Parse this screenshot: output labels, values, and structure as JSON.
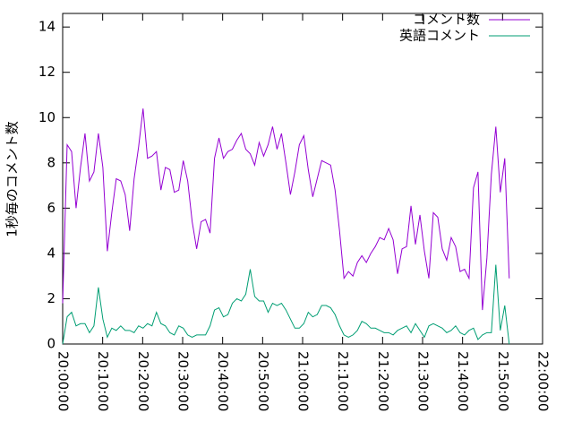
{
  "chart_data": {
    "type": "line",
    "y_label": "1秒毎のコメント数",
    "x": [
      "20:00:00",
      "20:01:07",
      "20:02:14",
      "20:03:21",
      "20:04:28",
      "20:05:35",
      "20:06:42",
      "20:07:49",
      "20:08:56",
      "20:10:03",
      "20:11:10",
      "20:12:17",
      "20:13:24",
      "20:14:31",
      "20:15:38",
      "20:16:45",
      "20:17:52",
      "20:18:59",
      "20:20:06",
      "20:21:13",
      "20:22:20",
      "20:23:27",
      "20:24:34",
      "20:25:41",
      "20:26:48",
      "20:27:55",
      "20:29:02",
      "20:30:09",
      "20:31:16",
      "20:32:23",
      "20:33:30",
      "20:34:37",
      "20:35:44",
      "20:36:51",
      "20:37:58",
      "20:39:05",
      "20:40:12",
      "20:41:19",
      "20:42:26",
      "20:43:33",
      "20:44:40",
      "20:45:47",
      "20:46:54",
      "20:48:01",
      "20:49:08",
      "20:50:15",
      "20:51:22",
      "20:52:29",
      "20:53:36",
      "20:54:43",
      "20:55:50",
      "20:56:57",
      "20:58:04",
      "20:59:11",
      "21:00:18",
      "21:01:25",
      "21:02:32",
      "21:03:39",
      "21:04:46",
      "21:05:53",
      "21:07:00",
      "21:08:07",
      "21:09:14",
      "21:10:21",
      "21:11:28",
      "21:12:35",
      "21:13:42",
      "21:14:49",
      "21:15:56",
      "21:17:03",
      "21:18:10",
      "21:19:17",
      "21:20:24",
      "21:21:31",
      "21:22:38",
      "21:23:45",
      "21:24:52",
      "21:25:59",
      "21:27:06",
      "21:28:13",
      "21:29:20",
      "21:30:27",
      "21:31:34",
      "21:32:41",
      "21:33:48",
      "21:34:55",
      "21:36:02",
      "21:37:09",
      "21:38:16",
      "21:39:23",
      "21:40:30",
      "21:41:37",
      "21:42:44",
      "21:43:51",
      "21:44:58",
      "21:46:05",
      "21:47:12",
      "21:48:19",
      "21:49:26",
      "21:50:33",
      "21:51:40"
    ],
    "series": [
      {
        "name": "コメント数",
        "color": "#9400d3",
        "values": [
          1.8,
          8.8,
          8.5,
          6.0,
          7.8,
          9.3,
          7.2,
          7.6,
          9.3,
          7.8,
          4.1,
          5.8,
          7.3,
          7.2,
          6.6,
          5.0,
          7.3,
          8.7,
          10.4,
          8.2,
          8.3,
          8.5,
          6.8,
          7.8,
          7.7,
          6.7,
          6.8,
          8.1,
          7.2,
          5.4,
          4.2,
          5.4,
          5.5,
          4.9,
          8.2,
          9.1,
          8.2,
          8.5,
          8.6,
          9.0,
          9.3,
          8.6,
          8.4,
          7.9,
          8.9,
          8.3,
          8.8,
          9.6,
          8.6,
          9.3,
          8.0,
          6.6,
          7.6,
          8.8,
          9.2,
          7.7,
          6.5,
          7.3,
          8.1,
          8.0,
          7.9,
          6.8,
          5.0,
          2.9,
          3.2,
          3.0,
          3.6,
          3.9,
          3.6,
          4.0,
          4.3,
          4.7,
          4.6,
          5.1,
          4.6,
          3.1,
          4.2,
          4.3,
          6.1,
          4.4,
          5.7,
          4.1,
          2.9,
          5.8,
          5.6,
          4.2,
          3.7,
          4.7,
          4.3,
          3.2,
          3.3,
          2.9,
          6.9,
          7.6,
          1.5,
          3.8,
          7.5,
          9.6,
          6.7,
          8.2,
          2.9
        ]
      },
      {
        "name": "英語コメント",
        "color": "#009e73",
        "values": [
          0.0,
          1.2,
          1.4,
          0.8,
          0.9,
          0.9,
          0.5,
          0.8,
          2.5,
          1.1,
          0.3,
          0.7,
          0.6,
          0.8,
          0.6,
          0.6,
          0.5,
          0.8,
          0.7,
          0.9,
          0.8,
          1.4,
          0.9,
          0.8,
          0.5,
          0.4,
          0.8,
          0.7,
          0.4,
          0.3,
          0.4,
          0.4,
          0.4,
          0.8,
          1.5,
          1.6,
          1.2,
          1.3,
          1.8,
          2.0,
          1.9,
          2.2,
          3.3,
          2.1,
          1.9,
          1.9,
          1.4,
          1.8,
          1.7,
          1.8,
          1.5,
          1.1,
          0.7,
          0.7,
          0.9,
          1.4,
          1.2,
          1.3,
          1.7,
          1.7,
          1.6,
          1.3,
          0.8,
          0.4,
          0.3,
          0.4,
          0.6,
          1.0,
          0.9,
          0.7,
          0.7,
          0.6,
          0.5,
          0.5,
          0.4,
          0.6,
          0.7,
          0.8,
          0.5,
          0.9,
          0.6,
          0.3,
          0.8,
          0.9,
          0.8,
          0.7,
          0.5,
          0.6,
          0.8,
          0.5,
          0.4,
          0.6,
          0.7,
          0.2,
          0.4,
          0.5,
          0.5,
          3.5,
          0.6,
          1.7,
          0.0
        ]
      }
    ],
    "xlim": [
      "20:00:00",
      "22:00:00"
    ],
    "xticks": [
      "20:00:00",
      "20:10:00",
      "20:20:00",
      "20:30:00",
      "20:40:00",
      "20:50:00",
      "21:00:00",
      "21:10:00",
      "21:20:00",
      "21:30:00",
      "21:40:00",
      "21:50:00",
      "22:00:00"
    ],
    "ylim": [
      0,
      14.6
    ],
    "yticks": [
      0,
      2,
      4,
      6,
      8,
      10,
      12,
      14
    ],
    "grid": false,
    "legend": "top-right"
  }
}
